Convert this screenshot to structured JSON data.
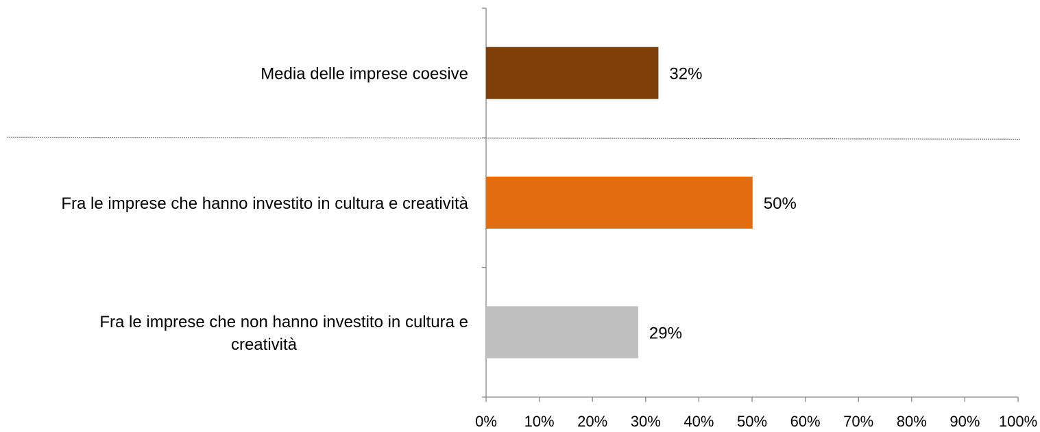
{
  "chart_data": {
    "type": "bar",
    "orientation": "horizontal",
    "categories": [
      "Media delle imprese coesive",
      "Fra le imprese che hanno investito in cultura e creatività",
      "Fra le imprese che non hanno investito in cultura e creatività"
    ],
    "category_lines": [
      [
        "Media delle imprese coesive"
      ],
      [
        "Fra le imprese che hanno investito in cultura e creatività"
      ],
      [
        "Fra le imprese che non hanno investito in cultura e",
        "creatività"
      ]
    ],
    "values": [
      32.4,
      50.1,
      28.6
    ],
    "value_labels": [
      "32%",
      "50%",
      "29%"
    ],
    "colors": [
      "#7F3F08",
      "#E36C0E",
      "#BFBFBF"
    ],
    "separator_after_category": 0,
    "xlim": [
      0,
      100
    ],
    "xticks": [
      0,
      10,
      20,
      30,
      40,
      50,
      60,
      70,
      80,
      90,
      100
    ],
    "xtick_labels": [
      "0%",
      "10%",
      "20%",
      "30%",
      "40%",
      "50%",
      "60%",
      "70%",
      "80%",
      "90%",
      "100%"
    ],
    "title": "",
    "xlabel": "",
    "ylabel": "",
    "grid": false,
    "legend": "none"
  }
}
